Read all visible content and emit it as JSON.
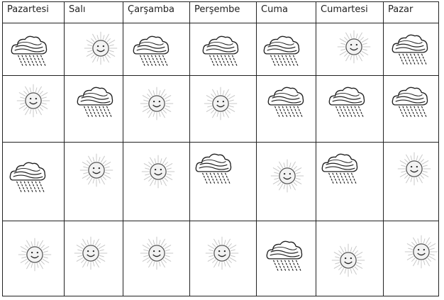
{
  "table": {
    "days": [
      "Pazartesi",
      "Salı",
      "Çarşamba",
      "Perşembe",
      "Cuma",
      "Cumartesi",
      "Pazar"
    ]
  },
  "weather": [
    [
      "rain-icon",
      "sun-icon",
      "rain-icon",
      "rain-icon",
      "rain-icon",
      "sun-icon",
      "rain-icon"
    ],
    [
      "sun-icon",
      "rain-icon",
      "sun-icon",
      "sun-icon",
      "rain-icon",
      "rain-icon",
      "rain-icon"
    ],
    [
      "rain-icon",
      "sun-icon",
      "sun-icon",
      "rain-icon",
      "sun-icon",
      "rain-icon",
      "sun-icon"
    ],
    [
      "sun-icon",
      "sun-icon",
      "sun-icon",
      "sun-icon",
      "rain-icon",
      "sun-icon",
      "sun-icon"
    ]
  ]
}
